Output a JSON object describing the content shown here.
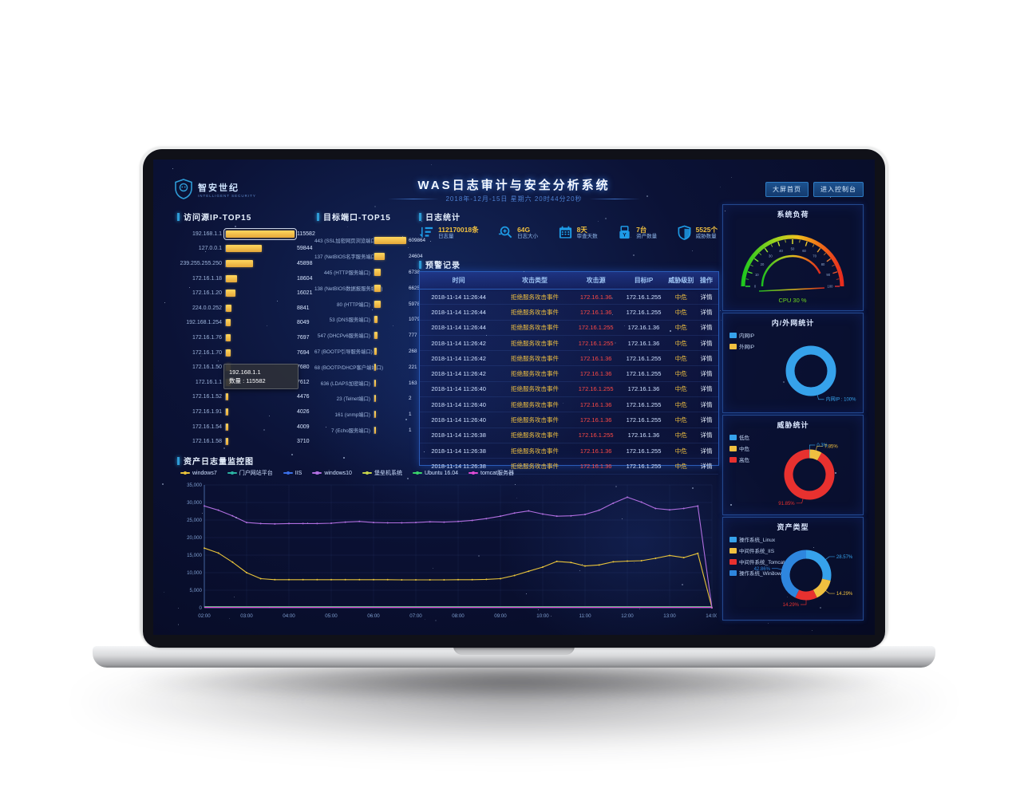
{
  "header": {
    "logo": {
      "text": "智安世纪",
      "subtext": "INTELLIGENT SECURITY"
    },
    "title": "WAS日志审计与安全分析系统",
    "subtitle": "2018年-12月-15日 星期六 20时44分20秒",
    "buttons": [
      {
        "label": "大屏首页"
      },
      {
        "label": "进入控制台"
      }
    ]
  },
  "sections": {
    "ip_top": "访问源IP-TOP15",
    "port_top": "目标端口-TOP15",
    "log_stats": "日志统计",
    "alerts": "预警记录",
    "asset_log": "资产日志量监控图"
  },
  "stats": {
    "items": [
      {
        "icon": "log-volume-icon",
        "value": "112170018条",
        "label": "日志量"
      },
      {
        "icon": "log-size-icon",
        "value": "64G",
        "label": "日志大小"
      },
      {
        "icon": "calendar-icon",
        "value": "8天",
        "label": "审查天数"
      },
      {
        "icon": "asset-count-icon",
        "value": "7台",
        "label": "资产数量"
      },
      {
        "icon": "threat-shield-icon",
        "value": "5525个",
        "label": "威胁数量"
      }
    ]
  },
  "tooltip": {
    "title": "192.168.1.1",
    "line": "数量 : 115582"
  },
  "alerts_table": {
    "headers": [
      "时间",
      "攻击类型",
      "攻击源",
      "目标IP",
      "威胁级别",
      "操作"
    ],
    "rows": [
      {
        "time": "2018-11-14 11:26:44",
        "type": "拒绝服务攻击事件",
        "source": "172.16.1.36",
        "target": "172.16.1.255",
        "level": "中危",
        "action": "详情"
      },
      {
        "time": "2018-11-14 11:26:44",
        "type": "拒绝服务攻击事件",
        "source": "172.16.1.36",
        "target": "172.16.1.255",
        "level": "中危",
        "action": "详情"
      },
      {
        "time": "2018-11-14 11:26:44",
        "type": "拒绝服务攻击事件",
        "source": "172.16.1.255",
        "target": "172.16.1.36",
        "level": "中危",
        "action": "详情"
      },
      {
        "time": "2018-11-14 11:26:42",
        "type": "拒绝服务攻击事件",
        "source": "172.16.1.255",
        "target": "172.16.1.36",
        "level": "中危",
        "action": "详情"
      },
      {
        "time": "2018-11-14 11:26:42",
        "type": "拒绝服务攻击事件",
        "source": "172.16.1.36",
        "target": "172.16.1.255",
        "level": "中危",
        "action": "详情"
      },
      {
        "time": "2018-11-14 11:26:42",
        "type": "拒绝服务攻击事件",
        "source": "172.16.1.36",
        "target": "172.16.1.255",
        "level": "中危",
        "action": "详情"
      },
      {
        "time": "2018-11-14 11:26:40",
        "type": "拒绝服务攻击事件",
        "source": "172.16.1.255",
        "target": "172.16.1.36",
        "level": "中危",
        "action": "详情"
      },
      {
        "time": "2018-11-14 11:26:40",
        "type": "拒绝服务攻击事件",
        "source": "172.16.1.36",
        "target": "172.16.1.255",
        "level": "中危",
        "action": "详情"
      },
      {
        "time": "2018-11-14 11:26:40",
        "type": "拒绝服务攻击事件",
        "source": "172.16.1.36",
        "target": "172.16.1.255",
        "level": "中危",
        "action": "详情"
      },
      {
        "time": "2018-11-14 11:26:38",
        "type": "拒绝服务攻击事件",
        "source": "172.16.1.255",
        "target": "172.16.1.36",
        "level": "中危",
        "action": "详情"
      },
      {
        "time": "2018-11-14 11:26:38",
        "type": "拒绝服务攻击事件",
        "source": "172.16.1.36",
        "target": "172.16.1.255",
        "level": "中危",
        "action": "详情"
      },
      {
        "time": "2018-11-14 11:26:38",
        "type": "拒绝服务攻击事件",
        "source": "172.16.1.36",
        "target": "172.16.1.255",
        "level": "中危",
        "action": "详情"
      }
    ]
  },
  "chart_data": [
    {
      "id": "ip_top15",
      "type": "bar",
      "orientation": "horizontal",
      "scale": "linear",
      "title": "访问源IP-TOP15",
      "categories": [
        "192.168.1.1",
        "127.0.0.1",
        "239.255.255.250",
        "172.16.1.18",
        "172.16.1.20",
        "224.0.0.252",
        "192.168.1.254",
        "172.16.1.76",
        "172.16.1.70",
        "172.16.1.50",
        "172.16.1.1",
        "172.16.1.52",
        "172.16.1.91",
        "172.16.1.54",
        "172.16.1.58"
      ],
      "values": [
        115582,
        59844,
        45898,
        18604,
        16021,
        8841,
        8049,
        7697,
        7694,
        7680,
        7612,
        4476,
        4026,
        4009,
        3710
      ],
      "highlight_index": 0,
      "bar_color": "#f0c040"
    },
    {
      "id": "port_top15",
      "type": "bar",
      "orientation": "horizontal",
      "scale": "pow",
      "title": "目标端口-TOP15",
      "categories": [
        "443 (SSL加密网页浏览端口)",
        "137 (NetBIOS名字服务端口)",
        "445 (HTTP服务端口)",
        "138 (NetBIOS数据报服务端口)",
        "80 (HTTP端口)",
        "53 (DNS服务端口)",
        "547 (DHCPv6服务端口)",
        "67 (BOOTP引导服务端口)",
        "68 (BOOTP/DHCP客户端端口)",
        "636 (LDAPS加密端口)",
        "23 (Telnet端口)",
        "161 (snmp端口)",
        "7 (Echo服务端口)"
      ],
      "values": [
        609864,
        24604,
        6738,
        6625,
        5978,
        1079,
        777,
        268,
        221,
        163,
        2,
        1,
        1
      ],
      "bar_color": "#f0c040"
    },
    {
      "id": "cpu_gauge",
      "type": "gauge",
      "title": "系统负荷",
      "min": 0,
      "max": 100,
      "tick_step": 10,
      "value": 30,
      "unit": "%",
      "label": "CPU 30 %"
    },
    {
      "id": "net_donut",
      "type": "pie",
      "title": "内/外网统计",
      "segments": [
        {
          "name": "内网IP",
          "value": 100,
          "color": "#36a2eb",
          "label": "内网IP : 100%"
        },
        {
          "name": "外网IP",
          "value": 0,
          "color": "#f0c040",
          "label": ""
        }
      ]
    },
    {
      "id": "threat_donut",
      "type": "pie",
      "title": "威胁统计",
      "segments": [
        {
          "name": "低危",
          "value": 0.3,
          "color": "#36a2eb",
          "label": "0.3%"
        },
        {
          "name": "中危",
          "value": 7.85,
          "color": "#f0c040",
          "label": "7.85%"
        },
        {
          "name": "高危",
          "value": 91.85,
          "color": "#e8312f",
          "label": "91.85%"
        }
      ]
    },
    {
      "id": "asset_donut",
      "type": "pie",
      "title": "资产类型",
      "segments": [
        {
          "name": "操作系统_Linux",
          "value": 28.57,
          "color": "#36a2eb",
          "label": "28.57%"
        },
        {
          "name": "中间件系统_IIS",
          "value": 14.29,
          "color": "#f0c040",
          "label": "14.29%"
        },
        {
          "name": "中间件系统_Tomcat",
          "value": 14.29,
          "color": "#e8312f",
          "label": "14.29%"
        },
        {
          "name": "操作系统_Windows",
          "value": 42.86,
          "color": "#2e86de",
          "label": "42.86%"
        }
      ]
    },
    {
      "id": "asset_log_line",
      "type": "line",
      "title": "资产日志量监控图",
      "ylim": [
        0,
        35000
      ],
      "ytick_step": 5000,
      "grid": true,
      "legend_position": "top",
      "categories": [
        "02:00",
        "03:00",
        "04:00",
        "05:00",
        "06:00",
        "07:00",
        "08:00",
        "09:00",
        "10:00",
        "11:00",
        "12:00",
        "13:00",
        "14:00"
      ],
      "series": [
        {
          "name": "windows7",
          "color": "#e8c33a",
          "values": [
            17000,
            15600,
            13000,
            10000,
            8300,
            8000,
            8000,
            8000,
            8000,
            8000,
            8000,
            8000,
            8000,
            8000,
            7950,
            7950,
            7950,
            7950,
            8000,
            8000,
            8100,
            8300,
            9200,
            10400,
            11600,
            13200,
            12900,
            11900,
            12200,
            13100,
            13300,
            13400,
            14100,
            14900,
            14300,
            15500,
            0
          ]
        },
        {
          "name": "门户网站平台",
          "color": "#2bb3a3",
          "flat": 350
        },
        {
          "name": "IIS",
          "color": "#3a6fe8",
          "flat": 280
        },
        {
          "name": "windows10",
          "color": "#b06ee0",
          "values": [
            29000,
            27800,
            26200,
            24300,
            24000,
            23900,
            24000,
            24000,
            24000,
            24100,
            24400,
            24600,
            24300,
            24200,
            24200,
            24300,
            24500,
            24400,
            24600,
            24900,
            25400,
            26100,
            27000,
            27600,
            26700,
            26100,
            26200,
            26600,
            27800,
            29800,
            31500,
            30100,
            28300,
            27900,
            28300,
            29000,
            0
          ]
        },
        {
          "name": "堡垒机系统",
          "color": "#c6d34a",
          "flat": 210
        },
        {
          "name": "Ubuntu 16.04",
          "color": "#3ad46a",
          "flat": 140
        },
        {
          "name": "tomcat服务器",
          "color": "#e04ad4",
          "flat": 80
        }
      ]
    }
  ]
}
